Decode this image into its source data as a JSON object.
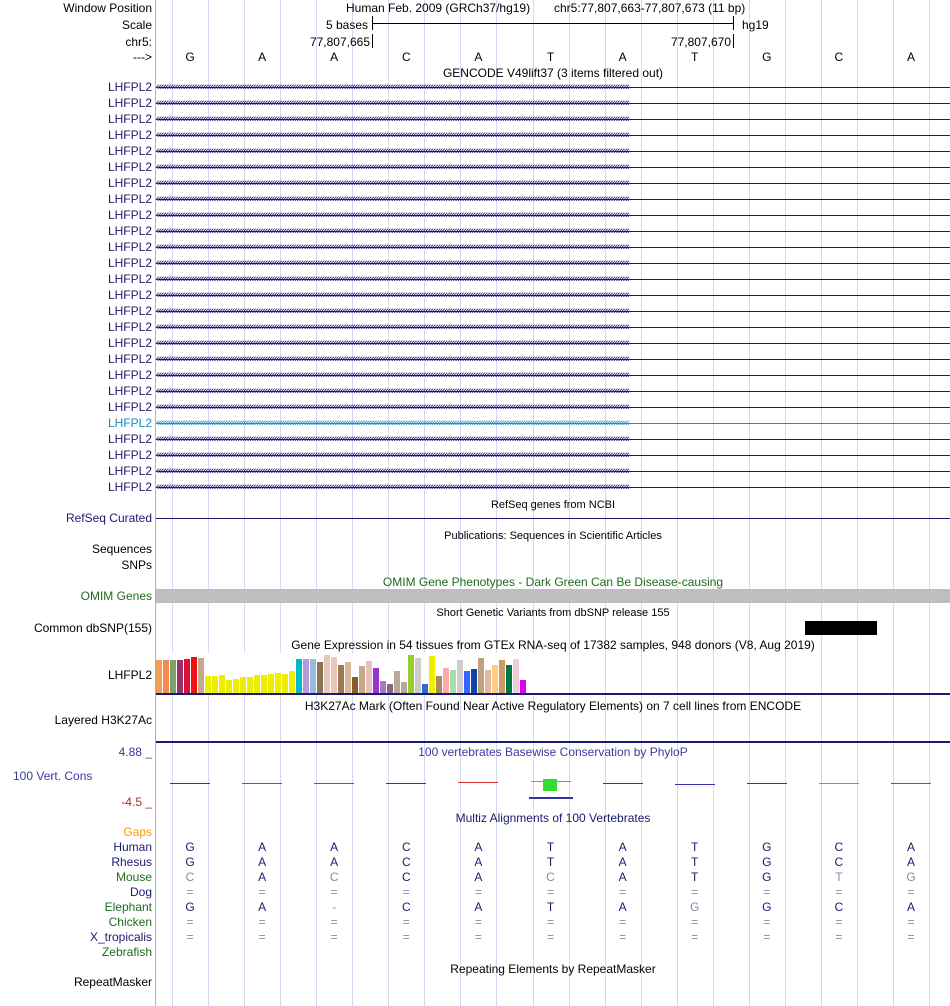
{
  "window_position": {
    "label": "Window Position",
    "assembly": "Human Feb. 2009 (GRCh37/hg19)",
    "region": "chr5:77,807,663-77,807,673 (11 bp)"
  },
  "scale": {
    "label": "Scale",
    "bases": "5 bases",
    "db": "hg19"
  },
  "coords": {
    "label": "chr5:",
    "left": "77,807,665",
    "right": "77,807,670"
  },
  "strand": {
    "label": "--->"
  },
  "sequence": [
    "G",
    "A",
    "A",
    "C",
    "A",
    "T",
    "A",
    "T",
    "G",
    "C",
    "A"
  ],
  "gencode": {
    "title": "GENCODE V49lift37 (3 items filtered out)",
    "label": "LHFPL2",
    "row_count": 26,
    "highlight_index": 21,
    "color": "#1a1a6e",
    "highlight_color": "#1a8cc0"
  },
  "refseq": {
    "title": "RefSeq genes from NCBI",
    "label": "RefSeq Curated",
    "color": "#1a1a6e"
  },
  "publications": {
    "title": "Publications: Sequences in Scientific Articles",
    "label_sequences": "Sequences",
    "label_snps": "SNPs"
  },
  "omim": {
    "title": "OMIM Gene Phenotypes - Dark Green Can Be Disease-causing",
    "label": "OMIM Genes",
    "color": "#1e6b1e"
  },
  "dbsnp": {
    "title": "Short Genetic Variants from dbSNP release 155",
    "label": "Common dbSNP(155)"
  },
  "gtex": {
    "title": "Gene Expression in 54 tissues from GTEx RNA-seq of 17382 samples, 948 donors (V8, Aug 2019)",
    "label": "LHFPL2",
    "bars": [
      {
        "v": 0.83,
        "c": "#f0a050"
      },
      {
        "v": 0.83,
        "c": "#f58a50"
      },
      {
        "v": 0.83,
        "c": "#7da06a"
      },
      {
        "v": 0.83,
        "c": "#993366"
      },
      {
        "v": 0.85,
        "c": "#dd1133"
      },
      {
        "v": 0.9,
        "c": "#ee1111"
      },
      {
        "v": 0.88,
        "c": "#c8a88a"
      },
      {
        "v": 0.43,
        "c": "#eeee00"
      },
      {
        "v": 0.43,
        "c": "#eeee00"
      },
      {
        "v": 0.45,
        "c": "#eeee00"
      },
      {
        "v": 0.33,
        "c": "#eeee00"
      },
      {
        "v": 0.35,
        "c": "#eeee00"
      },
      {
        "v": 0.4,
        "c": "#eeee00"
      },
      {
        "v": 0.4,
        "c": "#eeee00"
      },
      {
        "v": 0.45,
        "c": "#eeee00"
      },
      {
        "v": 0.45,
        "c": "#eeee00"
      },
      {
        "v": 0.48,
        "c": "#eeee00"
      },
      {
        "v": 0.5,
        "c": "#eeee00"
      },
      {
        "v": 0.48,
        "c": "#eeee00"
      },
      {
        "v": 0.55,
        "c": "#eeee00"
      },
      {
        "v": 0.85,
        "c": "#00bbcc"
      },
      {
        "v": 0.85,
        "c": "#bb99dd"
      },
      {
        "v": 0.85,
        "c": "#99bbdd"
      },
      {
        "v": 0.78,
        "c": "#8b7355"
      },
      {
        "v": 0.95,
        "c": "#e8c8b8"
      },
      {
        "v": 0.9,
        "c": "#e8c8b8"
      },
      {
        "v": 0.7,
        "c": "#a07850"
      },
      {
        "v": 0.78,
        "c": "#d8b898"
      },
      {
        "v": 0.4,
        "c": "#8b5a2b"
      },
      {
        "v": 0.68,
        "c": "#c8a888"
      },
      {
        "v": 0.8,
        "c": "#e8c0c0"
      },
      {
        "v": 0.62,
        "c": "#9933cc"
      },
      {
        "v": 0.3,
        "c": "#aa77cc"
      },
      {
        "v": 0.23,
        "c": "#886688"
      },
      {
        "v": 0.55,
        "c": "#b8a898"
      },
      {
        "v": 0.28,
        "c": "#b8a898"
      },
      {
        "v": 0.95,
        "c": "#99cc33"
      },
      {
        "v": 0.88,
        "c": "#cccccc"
      },
      {
        "v": 0.23,
        "c": "#3366cc"
      },
      {
        "v": 0.93,
        "c": "#eeee00"
      },
      {
        "v": 0.43,
        "c": "#aa8866"
      },
      {
        "v": 0.62,
        "c": "#ffaaaa"
      },
      {
        "v": 0.58,
        "c": "#aaddaa"
      },
      {
        "v": 0.83,
        "c": "#cccccc"
      },
      {
        "v": 0.55,
        "c": "#3366ff"
      },
      {
        "v": 0.6,
        "c": "#1144aa"
      },
      {
        "v": 0.88,
        "c": "#c0a080"
      },
      {
        "v": 0.58,
        "c": "#ddbb99"
      },
      {
        "v": 0.7,
        "c": "#ffcc88"
      },
      {
        "v": 0.83,
        "c": "#cc9966"
      },
      {
        "v": 0.7,
        "c": "#007744"
      },
      {
        "v": 0.85,
        "c": "#eeccdd"
      },
      {
        "v": 0.33,
        "c": "#dd00ee"
      },
      {
        "v": 0.0,
        "c": "#ffffff"
      }
    ]
  },
  "h3k27ac": {
    "title": "H3K27Ac Mark (Often Found Near Active Regulatory Elements) on 7 cell lines from ENCODE",
    "label": "Layered H3K27Ac"
  },
  "conservation": {
    "title": "100 vertebrates Basewise Conservation by PhyloP",
    "label": "100 Vert. Cons",
    "max_label": "4.88 _",
    "min_label": "-4.5 _",
    "max": 4.88,
    "min": -4.5,
    "scores": [
      0.15,
      -0.1,
      0.2,
      0.0,
      0.5,
      1.1,
      0.0,
      -0.25,
      0.1,
      -0.15,
      -0.1
    ],
    "score_colors": [
      "#3333aa",
      "#cc3333",
      "#cc3333",
      "#3333aa",
      "#cc3333",
      "#33cc33",
      "#3333aa",
      "#3333aa",
      "#3333aa",
      "#999933",
      "#cc3333"
    ]
  },
  "multiz": {
    "title": "Multiz Alignments of 100 Vertebrates",
    "gaps_label": "Gaps",
    "gaps_color": "#ff9900",
    "species": [
      {
        "name": "Human",
        "color": "#1a1a6e",
        "bases": [
          "G",
          "A",
          "A",
          "C",
          "A",
          "T",
          "A",
          "T",
          "G",
          "C",
          "A"
        ],
        "dim": []
      },
      {
        "name": "Rhesus",
        "color": "#1a1a6e",
        "bases": [
          "G",
          "A",
          "A",
          "C",
          "A",
          "T",
          "A",
          "T",
          "G",
          "C",
          "A"
        ],
        "dim": []
      },
      {
        "name": "Mouse",
        "color": "#1e6b1e",
        "bases": [
          "C",
          "A",
          "C",
          "C",
          "A",
          "C",
          "A",
          "T",
          "G",
          "T",
          "G"
        ],
        "dim": [
          0,
          2,
          5,
          9,
          10
        ]
      },
      {
        "name": "Dog",
        "color": "#1a1a6e",
        "bases": [
          "=",
          "=",
          "=",
          "=",
          "=",
          "=",
          "=",
          "=",
          "=",
          "=",
          "="
        ],
        "dim": [
          0,
          1,
          2,
          3,
          4,
          5,
          6,
          7,
          8,
          9,
          10
        ]
      },
      {
        "name": "Elephant",
        "color": "#1e6b1e",
        "bases": [
          "G",
          "A",
          "-",
          "C",
          "A",
          "T",
          "A",
          "G",
          "G",
          "C",
          "A"
        ],
        "dim": [
          2,
          7
        ]
      },
      {
        "name": "Chicken",
        "color": "#1e6b1e",
        "bases": [
          "=",
          "=",
          "=",
          "=",
          "=",
          "=",
          "=",
          "=",
          "=",
          "=",
          "="
        ],
        "dim": [
          0,
          1,
          2,
          3,
          4,
          5,
          6,
          7,
          8,
          9,
          10
        ]
      },
      {
        "name": "X_tropicalis",
        "color": "#1a1a6e",
        "bases": [
          "=",
          "=",
          "=",
          "=",
          "=",
          "=",
          "=",
          "=",
          "=",
          "=",
          "="
        ],
        "dim": [
          0,
          1,
          2,
          3,
          4,
          5,
          6,
          7,
          8,
          9,
          10
        ]
      },
      {
        "name": "Zebrafish",
        "color": "#1e6b1e",
        "bases": [
          "",
          "",
          "",
          "",
          "",
          "",
          "",
          "",
          "",
          "",
          ""
        ],
        "dim": []
      }
    ]
  },
  "repeatmasker": {
    "title": "Repeating Elements by RepeatMasker",
    "label": "RepeatMasker"
  }
}
